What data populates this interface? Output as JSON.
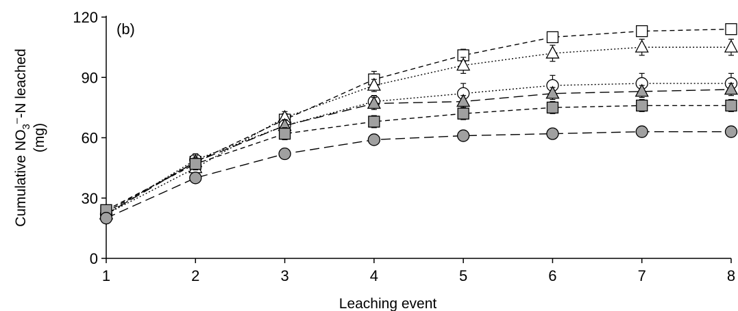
{
  "chart_data": {
    "type": "line",
    "panel_label": "(b)",
    "xlabel": "Leaching event",
    "ylabel_line1_main": "Cumulative NO",
    "ylabel_line1_sub": "3",
    "ylabel_line1_sup": "–",
    "ylabel_line1_tail": "-N leached",
    "ylabel_line2": "(mg)",
    "x": [
      1,
      2,
      3,
      4,
      5,
      6,
      7,
      8
    ],
    "xlim": [
      1,
      8
    ],
    "ylim": [
      0,
      120
    ],
    "yticks": [
      0,
      30,
      60,
      90,
      120
    ],
    "xticks": [
      1,
      2,
      3,
      4,
      5,
      6,
      7,
      8
    ],
    "grid": false,
    "series": [
      {
        "marker": "square",
        "fill": "#ffffff",
        "dash": "short-dash",
        "values": [
          23,
          48,
          69,
          89,
          101,
          110,
          113,
          114
        ],
        "errors": [
          1.5,
          3,
          3,
          4,
          3,
          2.5,
          2,
          2
        ]
      },
      {
        "marker": "triangle",
        "fill": "#ffffff",
        "dash": "dotted",
        "values": [
          22,
          45,
          70,
          86,
          96,
          102,
          105,
          105
        ],
        "errors": [
          1.5,
          3,
          3,
          3,
          4,
          4,
          4,
          4
        ]
      },
      {
        "marker": "circle",
        "fill": "#ffffff",
        "dash": "dotted",
        "values": [
          22,
          49,
          66,
          78,
          82,
          86,
          87,
          87
        ],
        "errors": [
          1.5,
          3,
          3,
          3,
          5,
          5,
          5,
          5
        ]
      },
      {
        "marker": "triangle",
        "fill": "#a0a0a0",
        "dash": "long-dash",
        "values": [
          22,
          48,
          66,
          77,
          78,
          82,
          83,
          84
        ],
        "errors": [
          1.5,
          3,
          3,
          3,
          3,
          3,
          3,
          3
        ]
      },
      {
        "marker": "square",
        "fill": "#a0a0a0",
        "dash": "short-dash",
        "values": [
          24,
          47,
          62,
          68,
          72,
          75,
          76,
          76
        ],
        "errors": [
          1.5,
          3,
          3,
          3,
          3,
          3,
          3,
          3
        ]
      },
      {
        "marker": "circle",
        "fill": "#a0a0a0",
        "dash": "long-dash",
        "values": [
          20,
          40,
          52,
          59,
          61,
          62,
          63,
          63
        ],
        "errors": [
          1,
          2,
          2,
          2,
          2,
          2,
          2,
          2
        ]
      }
    ]
  }
}
